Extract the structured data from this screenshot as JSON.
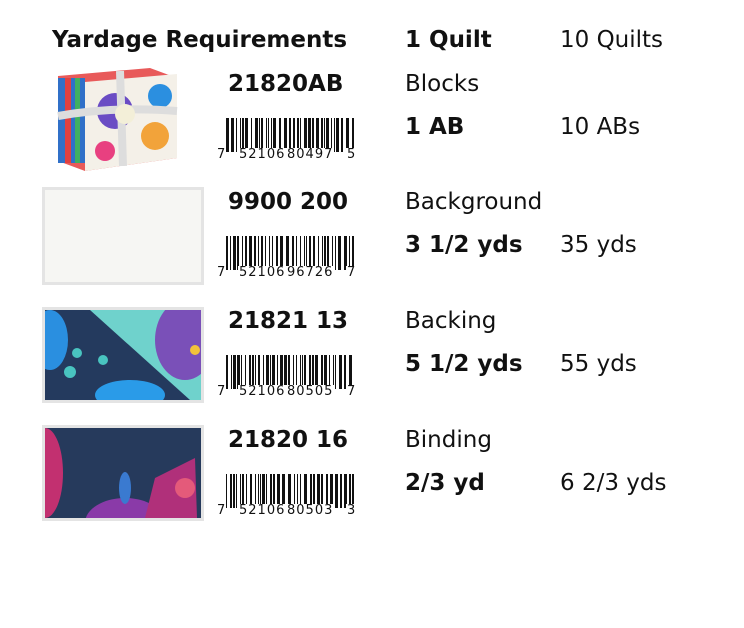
{
  "header": {
    "title": "Yardage Requirements",
    "col1": "1 Quilt",
    "col2": "10 Quilts"
  },
  "rows": [
    {
      "code": "21820AB",
      "barcode": {
        "first": "7",
        "left": "52106",
        "right": "80497",
        "check": "5"
      },
      "label": "Blocks",
      "qty1": "1 AB",
      "qty10": "10 ABs",
      "swatch": "fat-quarter-bundle"
    },
    {
      "code": "9900 200",
      "barcode": {
        "first": "7",
        "left": "52106",
        "right": "96726",
        "check": "7"
      },
      "label": "Background",
      "qty1": "3 1/2 yds",
      "qty10": "35 yds",
      "swatch": "white-solid",
      "color": "#f6f6f3"
    },
    {
      "code": "21821 13",
      "barcode": {
        "first": "7",
        "left": "52106",
        "right": "80505",
        "check": "7"
      },
      "label": "Backing",
      "qty1": "5 1/2 yds",
      "qty10": "55 yds",
      "swatch": "navy-aqua-print",
      "color": "#243a5e"
    },
    {
      "code": "21820 16",
      "barcode": {
        "first": "7",
        "left": "52106",
        "right": "80503",
        "check": "3"
      },
      "label": "Binding",
      "qty1": "2/3 yd",
      "qty10": "6 2/3 yds",
      "swatch": "navy-magenta-print",
      "color": "#263a5c"
    }
  ]
}
